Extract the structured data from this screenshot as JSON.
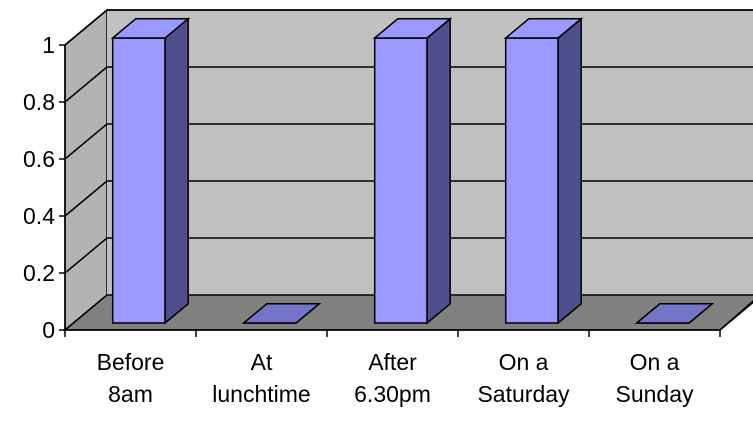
{
  "chart_data": {
    "type": "bar",
    "style": "3d-column",
    "categories": [
      [
        "Before",
        "8am"
      ],
      [
        "At",
        "lunchtime"
      ],
      [
        "After",
        "6.30pm"
      ],
      [
        "On a",
        "Saturday"
      ],
      [
        "On a",
        "Sunday"
      ]
    ],
    "values": [
      1,
      0,
      1,
      1,
      0
    ],
    "yticks": [
      "0",
      "0.2",
      "0.4",
      "0.6",
      "0.8",
      "1"
    ],
    "ylim": [
      0,
      1
    ],
    "grid": true,
    "legend": "none",
    "colors": {
      "bar_front": "#9999ff",
      "bar_side": "#4f4f8d",
      "bar_top": "#7373c7",
      "back_wall": "#c0c0c0",
      "side_wall": "#b3b3b3",
      "floor": "#808080",
      "gridline": "#000000",
      "axis": "#000000"
    }
  }
}
